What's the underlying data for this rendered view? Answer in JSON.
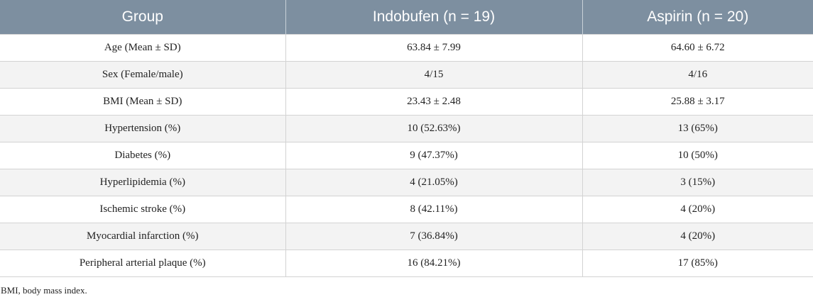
{
  "table": {
    "headers": [
      "Group",
      "Indobufen (n = 19)",
      "Aspirin (n = 20)"
    ],
    "rows": [
      [
        "Age (Mean ± SD)",
        "63.84 ± 7.99",
        "64.60 ± 6.72"
      ],
      [
        "Sex (Female/male)",
        "4/15",
        "4/16"
      ],
      [
        "BMI (Mean ± SD)",
        "23.43 ± 2.48",
        "25.88 ± 3.17"
      ],
      [
        "Hypertension (%)",
        "10 (52.63%)",
        "13 (65%)"
      ],
      [
        "Diabetes (%)",
        "9 (47.37%)",
        "10 (50%)"
      ],
      [
        "Hyperlipidemia (%)",
        "4 (21.05%)",
        "3 (15%)"
      ],
      [
        "Ischemic stroke (%)",
        "8 (42.11%)",
        "4 (20%)"
      ],
      [
        "Myocardial infarction (%)",
        "7 (36.84%)",
        "4 (20%)"
      ],
      [
        "Peripheral arterial plaque (%)",
        "16 (84.21%)",
        "17 (85%)"
      ]
    ]
  },
  "footnote": "BMI, body mass index.",
  "colors": {
    "header_background": "#7d8fa0",
    "header_text": "#ffffff",
    "stripe_background": "#f3f3f3",
    "border": "#d3d3d3"
  }
}
